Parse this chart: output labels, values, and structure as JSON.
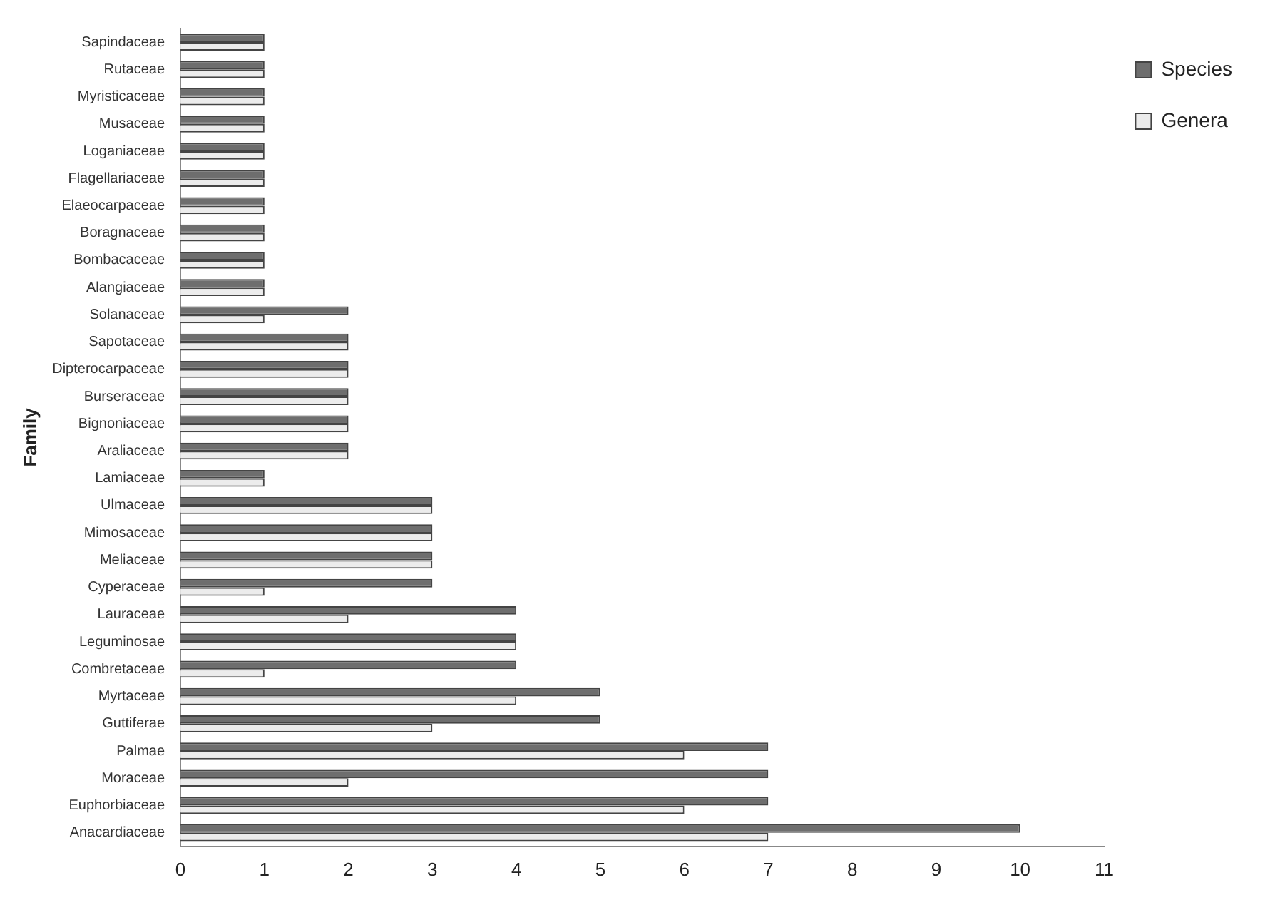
{
  "chart_data": {
    "type": "bar",
    "orientation": "horizontal",
    "ylabel": "Family",
    "categories": [
      "Sapindaceae",
      "Rutaceae",
      "Myristicaceae",
      "Musaceae",
      "Loganiaceae",
      "Flagellariaceae",
      "Elaeocarpaceae",
      "Boragnaceae",
      "Bombacaceae",
      "Alangiaceae",
      "Solanaceae",
      "Sapotaceae",
      "Dipterocarpaceae",
      "Burseraceae",
      "Bignoniaceae",
      "Araliaceae",
      "Lamiaceae",
      "Ulmaceae",
      "Mimosaceae",
      "Meliaceae",
      "Cyperaceae",
      "Lauraceae",
      "Leguminosae",
      "Combretaceae",
      "Myrtaceae",
      "Guttiferae",
      "Palmae",
      "Moraceae",
      "Euphorbiaceae",
      "Anacardiaceae"
    ],
    "series": [
      {
        "name": "Species",
        "color": "#6e6e6e",
        "values": [
          1,
          1,
          1,
          1,
          1,
          1,
          1,
          1,
          1,
          1,
          2,
          2,
          2,
          2,
          2,
          2,
          1,
          3,
          3,
          3,
          3,
          4,
          4,
          4,
          5,
          5,
          7,
          7,
          7,
          10
        ]
      },
      {
        "name": "Genera",
        "color": "#ececec",
        "values": [
          1,
          1,
          1,
          1,
          1,
          1,
          1,
          1,
          1,
          1,
          1,
          2,
          2,
          2,
          2,
          2,
          1,
          3,
          3,
          3,
          1,
          2,
          4,
          1,
          4,
          3,
          6,
          2,
          6,
          7
        ]
      }
    ],
    "xlim": [
      0,
      11
    ],
    "xticks": [
      0,
      1,
      2,
      3,
      4,
      5,
      6,
      7,
      8,
      9,
      10,
      11
    ],
    "grid": false,
    "legend": "right"
  }
}
